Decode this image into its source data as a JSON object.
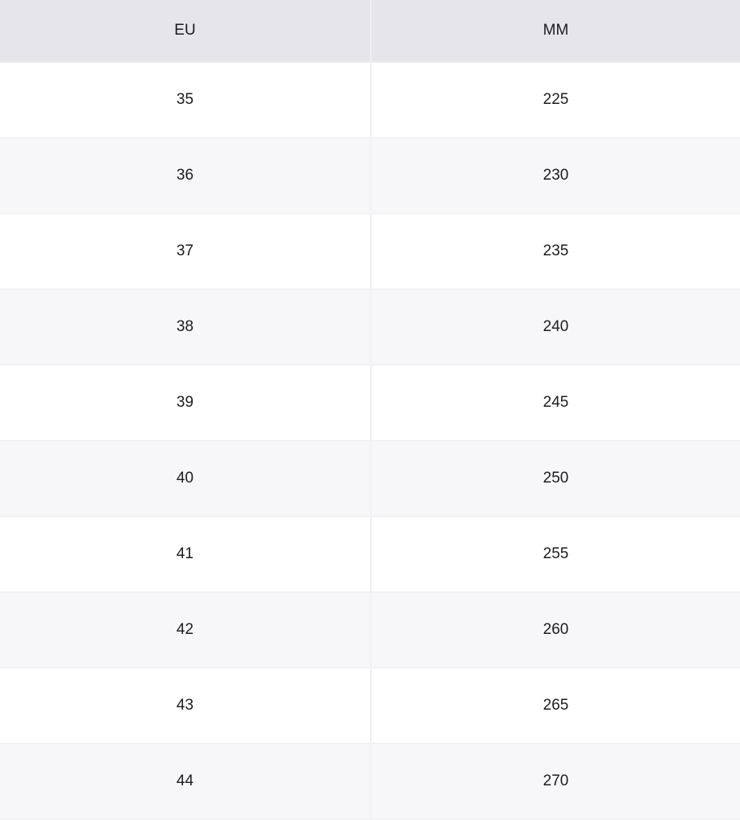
{
  "table": {
    "headers": [
      "EU",
      "MM"
    ],
    "rows": [
      [
        "35",
        "225"
      ],
      [
        "36",
        "230"
      ],
      [
        "37",
        "235"
      ],
      [
        "38",
        "240"
      ],
      [
        "39",
        "245"
      ],
      [
        "40",
        "250"
      ],
      [
        "41",
        "255"
      ],
      [
        "42",
        "260"
      ],
      [
        "43",
        "265"
      ],
      [
        "44",
        "270"
      ]
    ]
  },
  "colors": {
    "header_bg": "#e5e5ea",
    "stripe_bg": "#f7f7f9",
    "text": "#1c1c1e"
  }
}
